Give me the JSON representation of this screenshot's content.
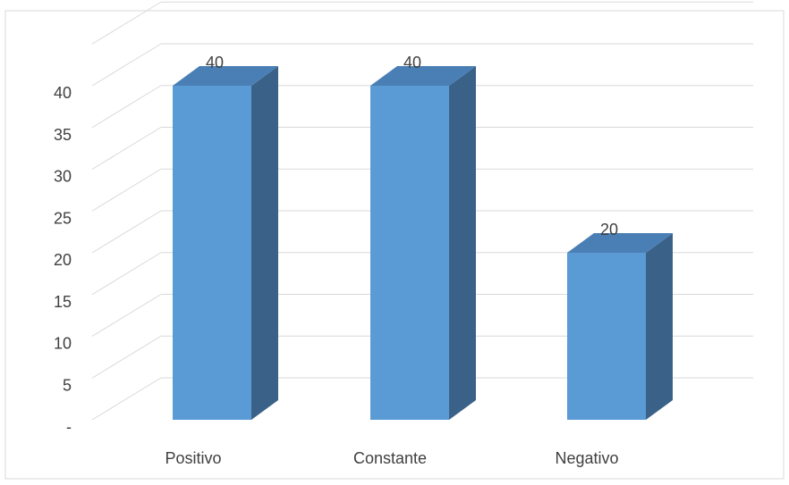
{
  "chart_data": {
    "type": "bar",
    "style": "3d-column",
    "categories": [
      "Positivo",
      "Constante",
      "Negativo"
    ],
    "values": [
      40,
      40,
      20
    ],
    "data_labels": [
      "40",
      "40",
      "20"
    ],
    "y_ticks": [
      "-",
      "5",
      "10",
      "15",
      "20",
      "25",
      "30",
      "35",
      "40"
    ],
    "ylim": [
      0,
      45
    ],
    "grid": true,
    "legend": "none",
    "colors": {
      "front": "#5b9bd5",
      "side": "#3a6288",
      "top": "#4a7fb5",
      "grid": "#d9d9d9",
      "border": "#d9d9d9"
    }
  }
}
